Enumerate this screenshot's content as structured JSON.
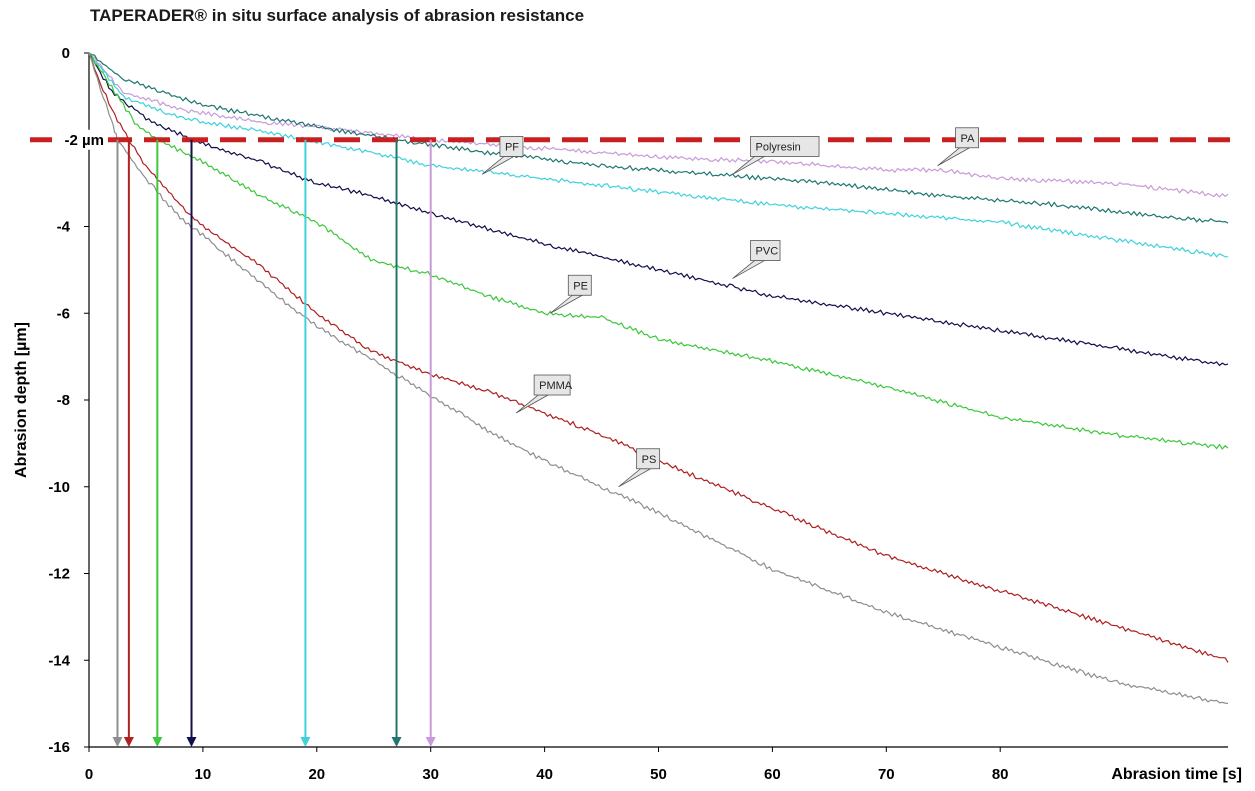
{
  "chart_data": {
    "type": "line",
    "title": "TAPERADER® in situ surface analysis of abrasion resistance",
    "xlabel": "Abrasion time [s]",
    "ylabel": "Abrasion depth [µm]",
    "xlim": [
      0,
      100
    ],
    "ylim": [
      -16,
      0
    ],
    "x_ticks": [
      0,
      10,
      20,
      30,
      40,
      50,
      60,
      70,
      80
    ],
    "y_ticks": [
      0,
      -2,
      -4,
      -6,
      -8,
      -10,
      -12,
      -14,
      -16
    ],
    "x_tick_labels": [
      "0",
      "10",
      "20",
      "30",
      "40",
      "50",
      "60",
      "70",
      "80"
    ],
    "y_tick_labels": [
      "0",
      "-2",
      "-4",
      "-6",
      "-8",
      "-10",
      "-12",
      "-14",
      "-16"
    ],
    "grid": false,
    "legend": "none",
    "threshold": {
      "y": -2,
      "label": "-2 µm",
      "color": "#c82020",
      "style": "dashed"
    },
    "series": [
      {
        "name": "PA",
        "color": "#c79bd9",
        "x": [
          0,
          3,
          8,
          15,
          20,
          30,
          40,
          50,
          60,
          70,
          75,
          80,
          90,
          100
        ],
        "y": [
          0,
          -0.9,
          -1.3,
          -1.6,
          -1.7,
          -2.0,
          -2.2,
          -2.4,
          -2.5,
          -2.7,
          -2.7,
          -2.9,
          -3.0,
          -3.3
        ],
        "crossing_x": 30
      },
      {
        "name": "Polyresin",
        "color": "#1f7770",
        "x": [
          0,
          3,
          10,
          20,
          27,
          35,
          45,
          55,
          65,
          75,
          85,
          95,
          100
        ],
        "y": [
          0,
          -0.6,
          -1.2,
          -1.7,
          -2.0,
          -2.3,
          -2.6,
          -2.8,
          -3.0,
          -3.3,
          -3.5,
          -3.8,
          -3.9
        ],
        "crossing_x": 27
      },
      {
        "name": "PF",
        "color": "#3fd2dc",
        "x": [
          0,
          3,
          8,
          15,
          19,
          25,
          30,
          40,
          50,
          60,
          70,
          80,
          90,
          100
        ],
        "y": [
          0,
          -1.0,
          -1.5,
          -1.8,
          -2.0,
          -2.3,
          -2.6,
          -2.9,
          -3.2,
          -3.5,
          -3.7,
          -3.9,
          -4.3,
          -4.7
        ],
        "crossing_x": 19
      },
      {
        "name": "PVC",
        "color": "#10104a",
        "x": [
          0,
          2,
          5,
          9,
          15,
          20,
          25,
          30,
          40,
          50,
          60,
          70,
          80,
          90,
          100
        ],
        "y": [
          0,
          -0.9,
          -1.5,
          -2.0,
          -2.5,
          -3.0,
          -3.3,
          -3.7,
          -4.4,
          -5.0,
          -5.6,
          -6.0,
          -6.4,
          -6.8,
          -7.2
        ],
        "crossing_x": 9
      },
      {
        "name": "PE",
        "color": "#3cc83c",
        "x": [
          0,
          2,
          4,
          6,
          10,
          15,
          20,
          25,
          30,
          35,
          40,
          45,
          50,
          60,
          70,
          80,
          90,
          100
        ],
        "y": [
          0,
          -0.8,
          -1.6,
          -2.0,
          -2.5,
          -3.3,
          -3.9,
          -4.8,
          -5.1,
          -5.6,
          -6.0,
          -6.1,
          -6.6,
          -7.1,
          -7.7,
          -8.4,
          -8.8,
          -9.1
        ],
        "crossing_x": 6
      },
      {
        "name": "PMMA",
        "color": "#b02020",
        "x": [
          0,
          1,
          2,
          3.5,
          5,
          8,
          10,
          15,
          20,
          25,
          30,
          35,
          40,
          45,
          50,
          60,
          70,
          80,
          90,
          100
        ],
        "y": [
          0,
          -0.7,
          -1.3,
          -2.0,
          -2.6,
          -3.5,
          -4.0,
          -4.9,
          -6.0,
          -6.9,
          -7.4,
          -7.8,
          -8.3,
          -8.8,
          -9.4,
          -10.5,
          -11.6,
          -12.4,
          -13.2,
          -14.0
        ],
        "crossing_x": 3.5
      },
      {
        "name": "PS",
        "color": "#8e8e8e",
        "x": [
          0,
          1,
          2,
          2.5,
          5,
          8,
          10,
          15,
          20,
          25,
          30,
          35,
          40,
          45,
          50,
          60,
          70,
          80,
          90,
          100
        ],
        "y": [
          0,
          -0.8,
          -1.6,
          -2.0,
          -2.9,
          -3.8,
          -4.2,
          -5.3,
          -6.3,
          -7.1,
          -7.9,
          -8.7,
          -9.4,
          -10.0,
          -10.6,
          -11.9,
          -12.9,
          -13.7,
          -14.5,
          -15.0
        ],
        "crossing_x": 2.5
      }
    ],
    "callouts": [
      {
        "text": "PF",
        "series": "PF",
        "point_x": 34.5,
        "point_y": -2.8
      },
      {
        "text": "Polyresin",
        "series": "Polyresin",
        "point_x": 56.5,
        "point_y": -2.8
      },
      {
        "text": "PA",
        "series": "PA",
        "point_x": 74.5,
        "point_y": -2.6
      },
      {
        "text": "PVC",
        "series": "PVC",
        "point_x": 56.5,
        "point_y": -5.2
      },
      {
        "text": "PE",
        "series": "PE",
        "point_x": 40.5,
        "point_y": -6.0
      },
      {
        "text": "PMMA",
        "series": "PMMA",
        "point_x": 37.5,
        "point_y": -8.3
      },
      {
        "text": "PS",
        "series": "PS",
        "point_x": 46.5,
        "point_y": -10.0
      }
    ]
  }
}
